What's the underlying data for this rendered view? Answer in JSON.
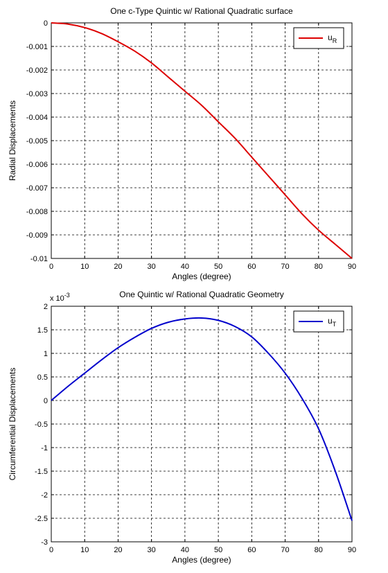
{
  "chart_data": [
    {
      "type": "line",
      "title": "One c-Type Quintic w/ Rational Quadratic surface",
      "xlabel": "Angles (degree)",
      "ylabel": "Radial Displacements",
      "xlim": [
        0,
        90
      ],
      "ylim": [
        -0.01,
        0
      ],
      "xticks": [
        "0",
        "10",
        "20",
        "30",
        "40",
        "50",
        "60",
        "70",
        "80",
        "90"
      ],
      "yticks": [
        "0",
        "-0.001",
        "-0.002",
        "-0.003",
        "-0.004",
        "-0.005",
        "-0.006",
        "-0.007",
        "-0.008",
        "-0.009",
        "-0.01"
      ],
      "exponent_label": "",
      "grid": true,
      "legend_position": "top-right",
      "color": "#dd0000",
      "series": [
        {
          "name": "u_R",
          "legend_main": "u",
          "legend_sub": "R",
          "x": [
            0,
            5,
            10,
            15,
            20,
            25,
            30,
            35,
            40,
            45,
            50,
            55,
            60,
            65,
            70,
            75,
            80,
            85,
            90
          ],
          "y": [
            0,
            -5e-05,
            -0.0002,
            -0.00045,
            -0.0008,
            -0.0012,
            -0.0017,
            -0.0023,
            -0.0029,
            -0.0035,
            -0.0042,
            -0.0049,
            -0.0057,
            -0.0065,
            -0.0073,
            -0.0081,
            -0.0088,
            -0.0094,
            -0.01
          ]
        }
      ]
    },
    {
      "type": "line",
      "title": "One Quintic w/ Rational Quadratic Geometry",
      "xlabel": "Angles (degree)",
      "ylabel": "Circumferential Displacements",
      "xlim": [
        0,
        90
      ],
      "ylim": [
        -3,
        2
      ],
      "xticks": [
        "0",
        "10",
        "20",
        "30",
        "40",
        "50",
        "60",
        "70",
        "80",
        "90"
      ],
      "yticks": [
        "2",
        "1.5",
        "1",
        "0.5",
        "0",
        "-0.5",
        "-1",
        "-1.5",
        "-2",
        "-2.5",
        "-3"
      ],
      "exponent_label": "x 10",
      "exponent_power": "-3",
      "grid": true,
      "legend_position": "top-right",
      "color": "#0000cc",
      "series": [
        {
          "name": "u_T",
          "legend_main": "u",
          "legend_sub": "T",
          "x": [
            0,
            5,
            10,
            15,
            20,
            25,
            30,
            35,
            40,
            45,
            50,
            55,
            60,
            65,
            70,
            75,
            80,
            85,
            90
          ],
          "y": [
            0,
            0.3,
            0.58,
            0.86,
            1.12,
            1.34,
            1.53,
            1.66,
            1.73,
            1.75,
            1.7,
            1.57,
            1.35,
            1.0,
            0.58,
            0.05,
            -0.6,
            -1.5,
            -2.55
          ]
        }
      ]
    }
  ]
}
